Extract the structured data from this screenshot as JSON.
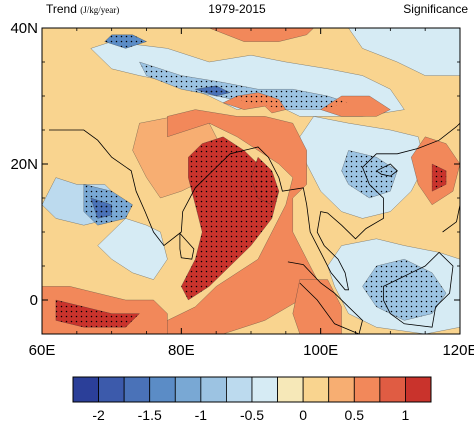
{
  "header": {
    "left_title": "Trend",
    "left_units": "(J/kg/year)",
    "center_title": "1979-2015",
    "right_title": "Significance"
  },
  "chart_data": {
    "type": "heatmap",
    "xlim": [
      60,
      120
    ],
    "ylim": [
      -5,
      40
    ],
    "x_ticks": [
      {
        "value": 60,
        "label": "60E"
      },
      {
        "value": 80,
        "label": "80E"
      },
      {
        "value": 100,
        "label": "100E"
      },
      {
        "value": 120,
        "label": "120E"
      }
    ],
    "y_ticks": [
      {
        "value": 0,
        "label": "0"
      },
      {
        "value": 20,
        "label": "20N"
      },
      {
        "value": 40,
        "label": "40N"
      }
    ],
    "colorbar": {
      "levels": [
        -2.25,
        -2,
        -1.75,
        -1.5,
        -1.25,
        -1,
        -0.75,
        -0.5,
        -0.25,
        0,
        0.25,
        0.5,
        0.75,
        1,
        1.25
      ],
      "tick_labels": [
        {
          "value": -2,
          "label": "-2"
        },
        {
          "value": -1.5,
          "label": "-1.5"
        },
        {
          "value": -1,
          "label": "-1"
        },
        {
          "value": -0.5,
          "label": "-0.5"
        },
        {
          "value": 0,
          "label": "0"
        },
        {
          "value": 0.5,
          "label": "0.5"
        },
        {
          "value": 1,
          "label": "1"
        }
      ],
      "colors": [
        "#2b3f99",
        "#3c5aab",
        "#4a72b8",
        "#5b8cc6",
        "#79a8d4",
        "#9cc3e2",
        "#bcdaee",
        "#d6ebf4",
        "#f6e8b8",
        "#f9d48f",
        "#f7ae72",
        "#f2885a",
        "#e05c43",
        "#c9332c"
      ]
    },
    "regions": [
      {
        "name": "background positive",
        "level": 0.1,
        "polygon": [
          [
            60,
            -5
          ],
          [
            120,
            -5
          ],
          [
            120,
            40
          ],
          [
            60,
            40
          ]
        ]
      },
      {
        "name": "Tibetan plateau negative",
        "level": -0.4,
        "polygon": [
          [
            70,
            38
          ],
          [
            78,
            37
          ],
          [
            84,
            35
          ],
          [
            90,
            36
          ],
          [
            95,
            35
          ],
          [
            101,
            34
          ],
          [
            106,
            33
          ],
          [
            110,
            31
          ],
          [
            112,
            28
          ],
          [
            106,
            27
          ],
          [
            101,
            27
          ],
          [
            97,
            27
          ],
          [
            93,
            29
          ],
          [
            88,
            28
          ],
          [
            84,
            30
          ],
          [
            79,
            32
          ],
          [
            74,
            33
          ],
          [
            70,
            34
          ],
          [
            67,
            37
          ]
        ]
      },
      {
        "name": "Tibetan plateau negative core",
        "level": -0.9,
        "polygon": [
          [
            74,
            35
          ],
          [
            80,
            33
          ],
          [
            86,
            32
          ],
          [
            91,
            31
          ],
          [
            96,
            31
          ],
          [
            101,
            30
          ],
          [
            104,
            29
          ],
          [
            100,
            28
          ],
          [
            95,
            28
          ],
          [
            90,
            29
          ],
          [
            85,
            30
          ],
          [
            80,
            31
          ],
          [
            75,
            33
          ]
        ]
      },
      {
        "name": "Tibetan plateau strong",
        "level": -1.6,
        "polygon": [
          [
            82,
            31
          ],
          [
            85,
            30
          ],
          [
            87,
            30.5
          ],
          [
            85,
            31.5
          ]
        ]
      },
      {
        "name": "Himalaya positive",
        "level": 0.6,
        "polygon": [
          [
            86,
            29
          ],
          [
            89,
            28
          ],
          [
            92,
            28.5
          ],
          [
            93,
            27.5
          ],
          [
            95,
            28
          ],
          [
            94,
            29.5
          ],
          [
            91,
            30.5
          ],
          [
            88,
            30
          ]
        ]
      },
      {
        "name": "Pamir negative",
        "level": -1.3,
        "polygon": [
          [
            69,
            38
          ],
          [
            72,
            37
          ],
          [
            75,
            38
          ],
          [
            73,
            39
          ],
          [
            70,
            39
          ]
        ]
      },
      {
        "name": "Tarim positive",
        "level": 0.6,
        "polygon": [
          [
            84,
            40
          ],
          [
            89,
            38
          ],
          [
            94,
            38
          ],
          [
            98,
            39
          ],
          [
            99,
            40
          ]
        ]
      },
      {
        "name": "North-east negative",
        "level": -0.4,
        "polygon": [
          [
            104,
            40
          ],
          [
            106,
            37
          ],
          [
            111,
            35
          ],
          [
            115,
            33
          ],
          [
            120,
            33
          ],
          [
            120,
            40
          ]
        ]
      },
      {
        "name": "Sichuan positive",
        "level": 0.5,
        "polygon": [
          [
            100,
            28
          ],
          [
            103,
            27
          ],
          [
            108,
            27
          ],
          [
            110,
            28
          ],
          [
            107,
            30
          ],
          [
            103,
            30
          ]
        ]
      },
      {
        "name": "Southeast Asia negative",
        "level": -0.4,
        "polygon": [
          [
            99,
            27
          ],
          [
            104,
            26
          ],
          [
            110,
            25
          ],
          [
            114,
            24
          ],
          [
            115,
            20
          ],
          [
            113,
            16
          ],
          [
            110,
            13
          ],
          [
            106,
            12
          ],
          [
            103,
            13
          ],
          [
            100,
            16
          ],
          [
            98,
            20
          ],
          [
            97,
            24
          ]
        ]
      },
      {
        "name": "Southeast Asia core",
        "level": -0.9,
        "polygon": [
          [
            104,
            22
          ],
          [
            108,
            21
          ],
          [
            111,
            19
          ],
          [
            110,
            16
          ],
          [
            107,
            15
          ],
          [
            104,
            17
          ],
          [
            103,
            19
          ]
        ]
      },
      {
        "name": "South China positive",
        "level": 0.7,
        "polygon": [
          [
            115,
            24
          ],
          [
            118,
            23
          ],
          [
            120,
            20
          ],
          [
            119,
            16
          ],
          [
            116,
            14
          ],
          [
            114,
            17
          ],
          [
            113,
            21
          ]
        ]
      },
      {
        "name": "South China strong",
        "level": 1.0,
        "polygon": [
          [
            116,
            20
          ],
          [
            118,
            19
          ],
          [
            118,
            17
          ],
          [
            116,
            16
          ]
        ]
      },
      {
        "name": "Arabian Sea negative",
        "level": -0.6,
        "polygon": [
          [
            62,
            18
          ],
          [
            65,
            17
          ],
          [
            69,
            17
          ],
          [
            71,
            15
          ],
          [
            70,
            12
          ],
          [
            66,
            11
          ],
          [
            62,
            12
          ],
          [
            60,
            14
          ]
        ]
      },
      {
        "name": "Western Ghats negative",
        "level": -1.1,
        "polygon": [
          [
            66,
            17
          ],
          [
            70,
            16
          ],
          [
            73,
            14
          ],
          [
            72,
            12
          ],
          [
            68,
            11
          ],
          [
            66,
            13
          ]
        ]
      },
      {
        "name": "Arabian Sea strong",
        "level": -1.7,
        "polygon": [
          [
            67,
            15
          ],
          [
            70,
            14
          ],
          [
            70,
            12.5
          ],
          [
            68,
            12
          ]
        ]
      },
      {
        "name": "India central",
        "level": 0.3,
        "polygon": [
          [
            74,
            26
          ],
          [
            79,
            27
          ],
          [
            84,
            26
          ],
          [
            86,
            22
          ],
          [
            84,
            18
          ],
          [
            80,
            16
          ],
          [
            77,
            15
          ],
          [
            75,
            18
          ],
          [
            73,
            22
          ]
        ]
      },
      {
        "name": "Bay of Bengal positive",
        "level": 0.7,
        "polygon": [
          [
            78,
            24
          ],
          [
            84,
            26
          ],
          [
            88,
            24
          ],
          [
            91,
            22
          ],
          [
            94,
            20
          ],
          [
            96,
            18
          ],
          [
            95,
            14
          ],
          [
            93,
            10
          ],
          [
            91,
            6
          ],
          [
            88,
            4
          ],
          [
            85,
            2
          ],
          [
            82,
            -1
          ],
          [
            78,
            -3
          ],
          [
            74,
            -5
          ],
          [
            86,
            -5
          ],
          [
            92,
            -3
          ],
          [
            97,
            0
          ],
          [
            100,
            2
          ],
          [
            98,
            6
          ],
          [
            96,
            10
          ],
          [
            96,
            15
          ],
          [
            98,
            17
          ],
          [
            98,
            22
          ],
          [
            96,
            26
          ],
          [
            92,
            27
          ],
          [
            88,
            27
          ],
          [
            82,
            28
          ],
          [
            78,
            27
          ]
        ]
      },
      {
        "name": "Bay of Bengal strong",
        "level": 1.1,
        "polygon": [
          [
            83,
            23
          ],
          [
            86,
            24
          ],
          [
            89,
            22
          ],
          [
            92,
            19
          ],
          [
            94,
            16
          ],
          [
            93,
            12
          ],
          [
            90,
            8
          ],
          [
            87,
            5
          ],
          [
            84,
            2
          ],
          [
            81,
            0
          ],
          [
            80,
            2
          ],
          [
            82,
            6
          ],
          [
            83,
            10
          ],
          [
            82,
            14
          ],
          [
            81,
            18
          ],
          [
            81,
            21
          ]
        ]
      },
      {
        "name": "Bay of Bengal core",
        "level": 1.3,
        "polygon": [
          [
            91,
            21
          ],
          [
            93,
            19
          ],
          [
            94,
            16
          ],
          [
            93,
            14
          ],
          [
            91,
            15
          ],
          [
            90,
            18
          ]
        ]
      },
      {
        "name": "South of India negative",
        "level": -0.4,
        "polygon": [
          [
            72,
            12
          ],
          [
            75,
            11
          ],
          [
            77,
            10
          ],
          [
            78,
            6
          ],
          [
            76,
            3
          ],
          [
            73,
            4
          ],
          [
            70,
            6
          ],
          [
            68,
            8
          ],
          [
            70,
            10
          ]
        ]
      },
      {
        "name": "Equatorial west positive",
        "level": 0.7,
        "polygon": [
          [
            60,
            2
          ],
          [
            64,
            2
          ],
          [
            68,
            1
          ],
          [
            72,
            0
          ],
          [
            76,
            0
          ],
          [
            78,
            -2
          ],
          [
            78,
            -5
          ],
          [
            60,
            -5
          ]
        ]
      },
      {
        "name": "Equatorial west strong",
        "level": 1.0,
        "polygon": [
          [
            62,
            0
          ],
          [
            66,
            -1
          ],
          [
            70,
            -2
          ],
          [
            74,
            -2
          ],
          [
            72,
            -4
          ],
          [
            66,
            -4
          ],
          [
            62,
            -3
          ]
        ]
      },
      {
        "name": "Borneo negative",
        "level": -0.5,
        "polygon": [
          [
            103,
            8
          ],
          [
            108,
            9
          ],
          [
            112,
            8
          ],
          [
            117,
            7
          ],
          [
            120,
            6
          ],
          [
            120,
            -4
          ],
          [
            115,
            -5
          ],
          [
            108,
            -4
          ],
          [
            104,
            -2
          ],
          [
            102,
            2
          ],
          [
            101,
            5
          ]
        ]
      },
      {
        "name": "Borneo core",
        "level": -1.0,
        "polygon": [
          [
            108,
            5
          ],
          [
            112,
            6
          ],
          [
            116,
            4
          ],
          [
            118,
            1
          ],
          [
            116,
            -2
          ],
          [
            112,
            -3
          ],
          [
            108,
            -1
          ],
          [
            106,
            2
          ]
        ]
      },
      {
        "name": "Equatorial east positive",
        "level": 0.6,
        "polygon": [
          [
            97,
            3
          ],
          [
            101,
            3
          ],
          [
            103,
            -1
          ],
          [
            103,
            -5
          ],
          [
            97,
            -5
          ],
          [
            96,
            -2
          ]
        ]
      }
    ]
  }
}
